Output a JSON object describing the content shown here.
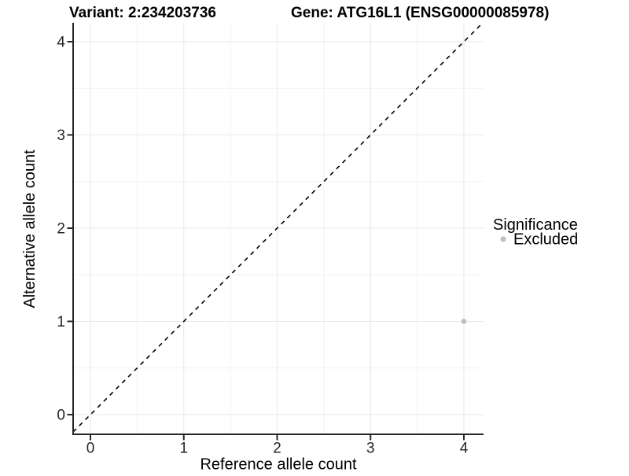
{
  "chart_data": {
    "type": "scatter",
    "titles": {
      "variant": "Variant: 2:234203736",
      "gene": "Gene: ATG16L1 (ENSG00000085978)"
    },
    "xlabel": "Reference allele count",
    "ylabel": "Alternative allele count",
    "xlim": [
      -0.19,
      4.19
    ],
    "ylim": [
      -0.19,
      4.19
    ],
    "x_ticks": [
      "0",
      "1",
      "2",
      "3",
      "4"
    ],
    "y_ticks": [
      "0",
      "1",
      "2",
      "3",
      "4"
    ],
    "grid": {
      "major": true,
      "minor": true,
      "background": "#ffffff"
    },
    "reference_line": {
      "kind": "identity y=x diagonal",
      "style": "dashed",
      "color": "#000000"
    },
    "series": [
      {
        "name": "Excluded",
        "color": "#bfbfbf",
        "points": [
          {
            "x": 4,
            "y": 1
          }
        ]
      }
    ],
    "legend": {
      "title": "Significance",
      "position": "right",
      "items": [
        {
          "label": "Excluded",
          "color": "#bfbfbf"
        }
      ]
    }
  }
}
